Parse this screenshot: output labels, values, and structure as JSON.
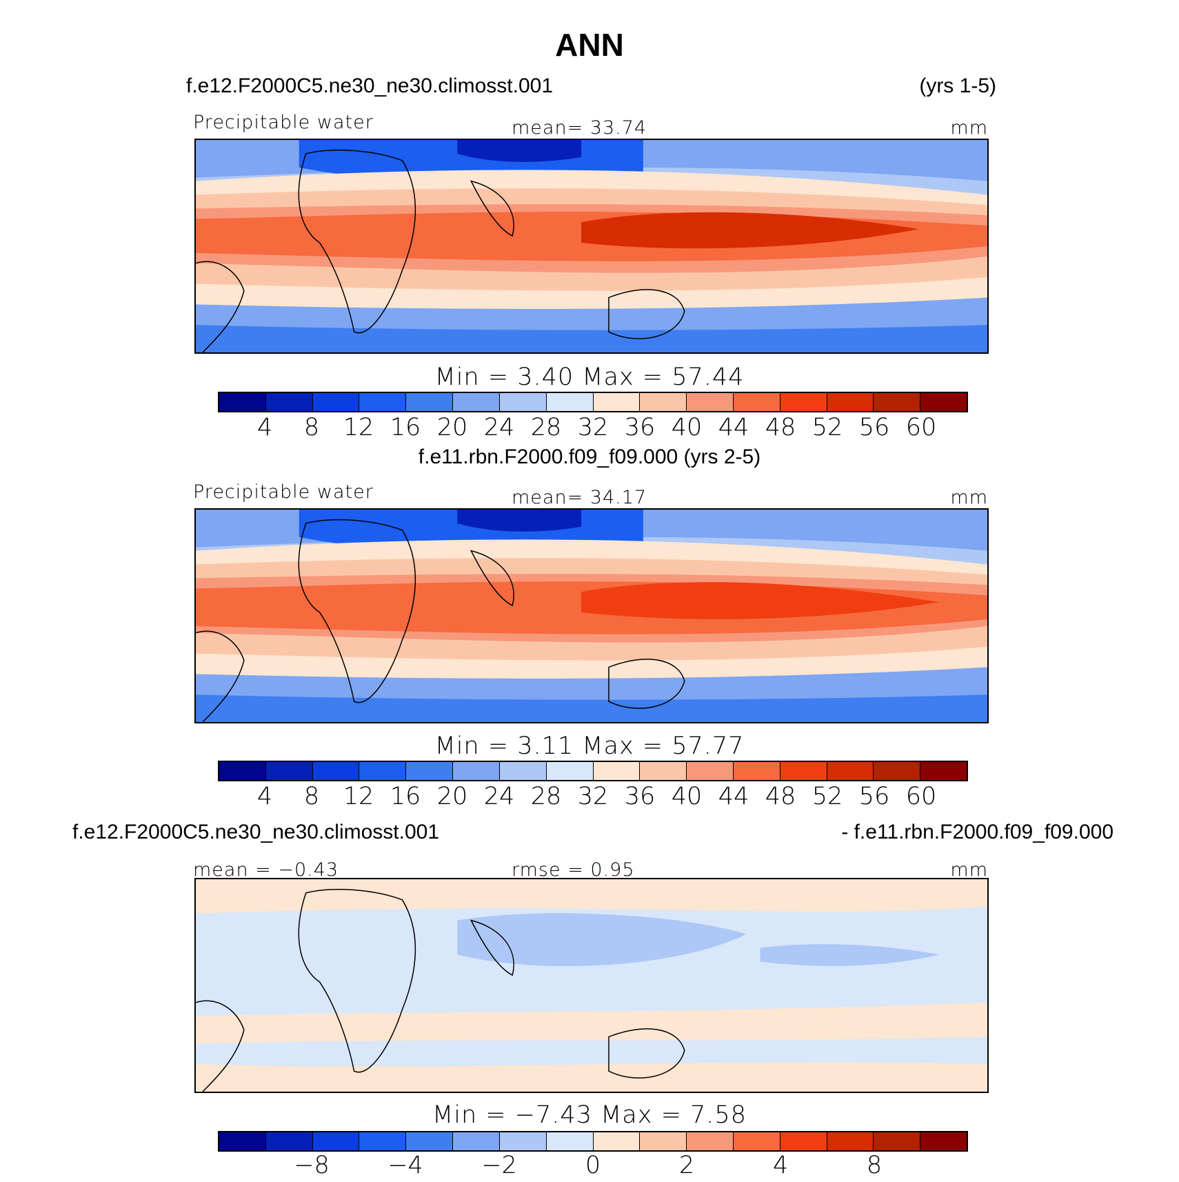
{
  "title": "ANN",
  "panels": [
    {
      "case_left": "f.e12.F2000C5.ne30_ne30.climosst.001",
      "case_right": "(yrs 1-5)",
      "var_label": "Precipitable water",
      "center_stat": "mean=   33.74",
      "units": "mm",
      "minmax": "Min  =     3.40  Max  =   57.44",
      "colorbar": {
        "colors": [
          "#00058f",
          "#0520b8",
          "#0a3ee0",
          "#1b5ef0",
          "#3f7ef0",
          "#7ea6f2",
          "#adc8f6",
          "#d8e7fa",
          "#fde6d2",
          "#fbc6a8",
          "#f8987a",
          "#f66a3e",
          "#f03e10",
          "#d82c02",
          "#b32200",
          "#8a0000"
        ],
        "ticks": [
          "4",
          "8",
          "12",
          "16",
          "20",
          "24",
          "28",
          "32",
          "36",
          "40",
          "44",
          "48",
          "52",
          "56",
          "60"
        ]
      }
    },
    {
      "case_center": "f.e11.rbn.F2000.f09_f09.000 (yrs 2-5)",
      "var_label": "Precipitable water",
      "center_stat": "mean=   34.17",
      "units": "mm",
      "minmax": "Min  =     3.11  Max  =   57.77",
      "colorbar": {
        "colors": [
          "#00058f",
          "#0520b8",
          "#0a3ee0",
          "#1b5ef0",
          "#3f7ef0",
          "#7ea6f2",
          "#adc8f6",
          "#d8e7fa",
          "#fde6d2",
          "#fbc6a8",
          "#f8987a",
          "#f66a3e",
          "#f03e10",
          "#d82c02",
          "#b32200",
          "#8a0000"
        ],
        "ticks": [
          "4",
          "8",
          "12",
          "16",
          "20",
          "24",
          "28",
          "32",
          "36",
          "40",
          "44",
          "48",
          "52",
          "56",
          "60"
        ]
      }
    },
    {
      "case_left": "f.e12.F2000C5.ne30_ne30.climosst.001",
      "case_right": "- f.e11.rbn.F2000.f09_f09.000",
      "left_stat": "mean  =    −0.43",
      "center_stat": "rmse  =     0.95",
      "units": "mm",
      "minmax": "Min  =   −7.43  Max  =      7.58",
      "colorbar": {
        "colors": [
          "#00058f",
          "#0520b8",
          "#0a3ee0",
          "#1b5ef0",
          "#3f7ef0",
          "#7ea6f2",
          "#adc8f6",
          "#d8e7fa",
          "#fde6d2",
          "#fbc6a8",
          "#f8987a",
          "#f66a3e",
          "#f03e10",
          "#d82c02",
          "#b32200",
          "#8a0000"
        ],
        "ticks": [
          "−8",
          "",
          "−4",
          "",
          "−2",
          "",
          "0",
          "",
          "2",
          "",
          "4",
          "",
          "8"
        ]
      }
    }
  ]
}
